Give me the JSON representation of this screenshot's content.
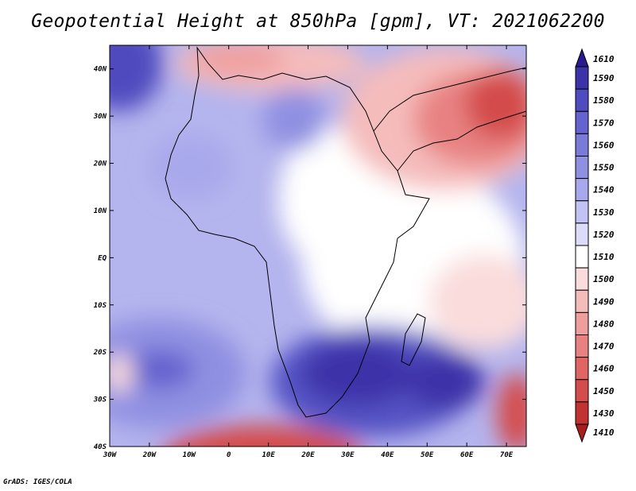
{
  "title": "Geopotential Height at 850hPa [gpm], VT: 2021062200",
  "footer": "GrADS: IGES/COLA",
  "map": {
    "lat_labels": [
      "40N",
      "30N",
      "20N",
      "10N",
      "EQ",
      "10S",
      "20S",
      "30S",
      "40S"
    ],
    "lat_values": [
      40,
      30,
      20,
      10,
      0,
      -10,
      -20,
      -30,
      -40
    ],
    "lon_labels": [
      "30W",
      "20W",
      "10W",
      "0",
      "10E",
      "20E",
      "30E",
      "40E",
      "50E",
      "60E",
      "70E"
    ],
    "lon_values": [
      -30,
      -20,
      -10,
      0,
      10,
      20,
      30,
      40,
      50,
      60,
      70
    ],
    "extent": {
      "lon_min": -30,
      "lon_max": 75,
      "lat_min": -40,
      "lat_max": 45
    }
  },
  "colorbar": {
    "levels": [
      "1610",
      "1590",
      "1580",
      "1570",
      "1560",
      "1550",
      "1540",
      "1530",
      "1520",
      "1510",
      "1500",
      "1490",
      "1480",
      "1470",
      "1460",
      "1450",
      "1430",
      "1410"
    ],
    "colors": [
      "#2a1a8f",
      "#3d33a8",
      "#4f4cbf",
      "#6563cf",
      "#7a7ad9",
      "#9090e2",
      "#a8a8ec",
      "#c2c2f4",
      "#dcdcfa",
      "#ffffff",
      "#fadcdc",
      "#f5bcbc",
      "#ef9e9e",
      "#e88282",
      "#e06666",
      "#d44c4c",
      "#c13333",
      "#a61e1e"
    ]
  }
}
